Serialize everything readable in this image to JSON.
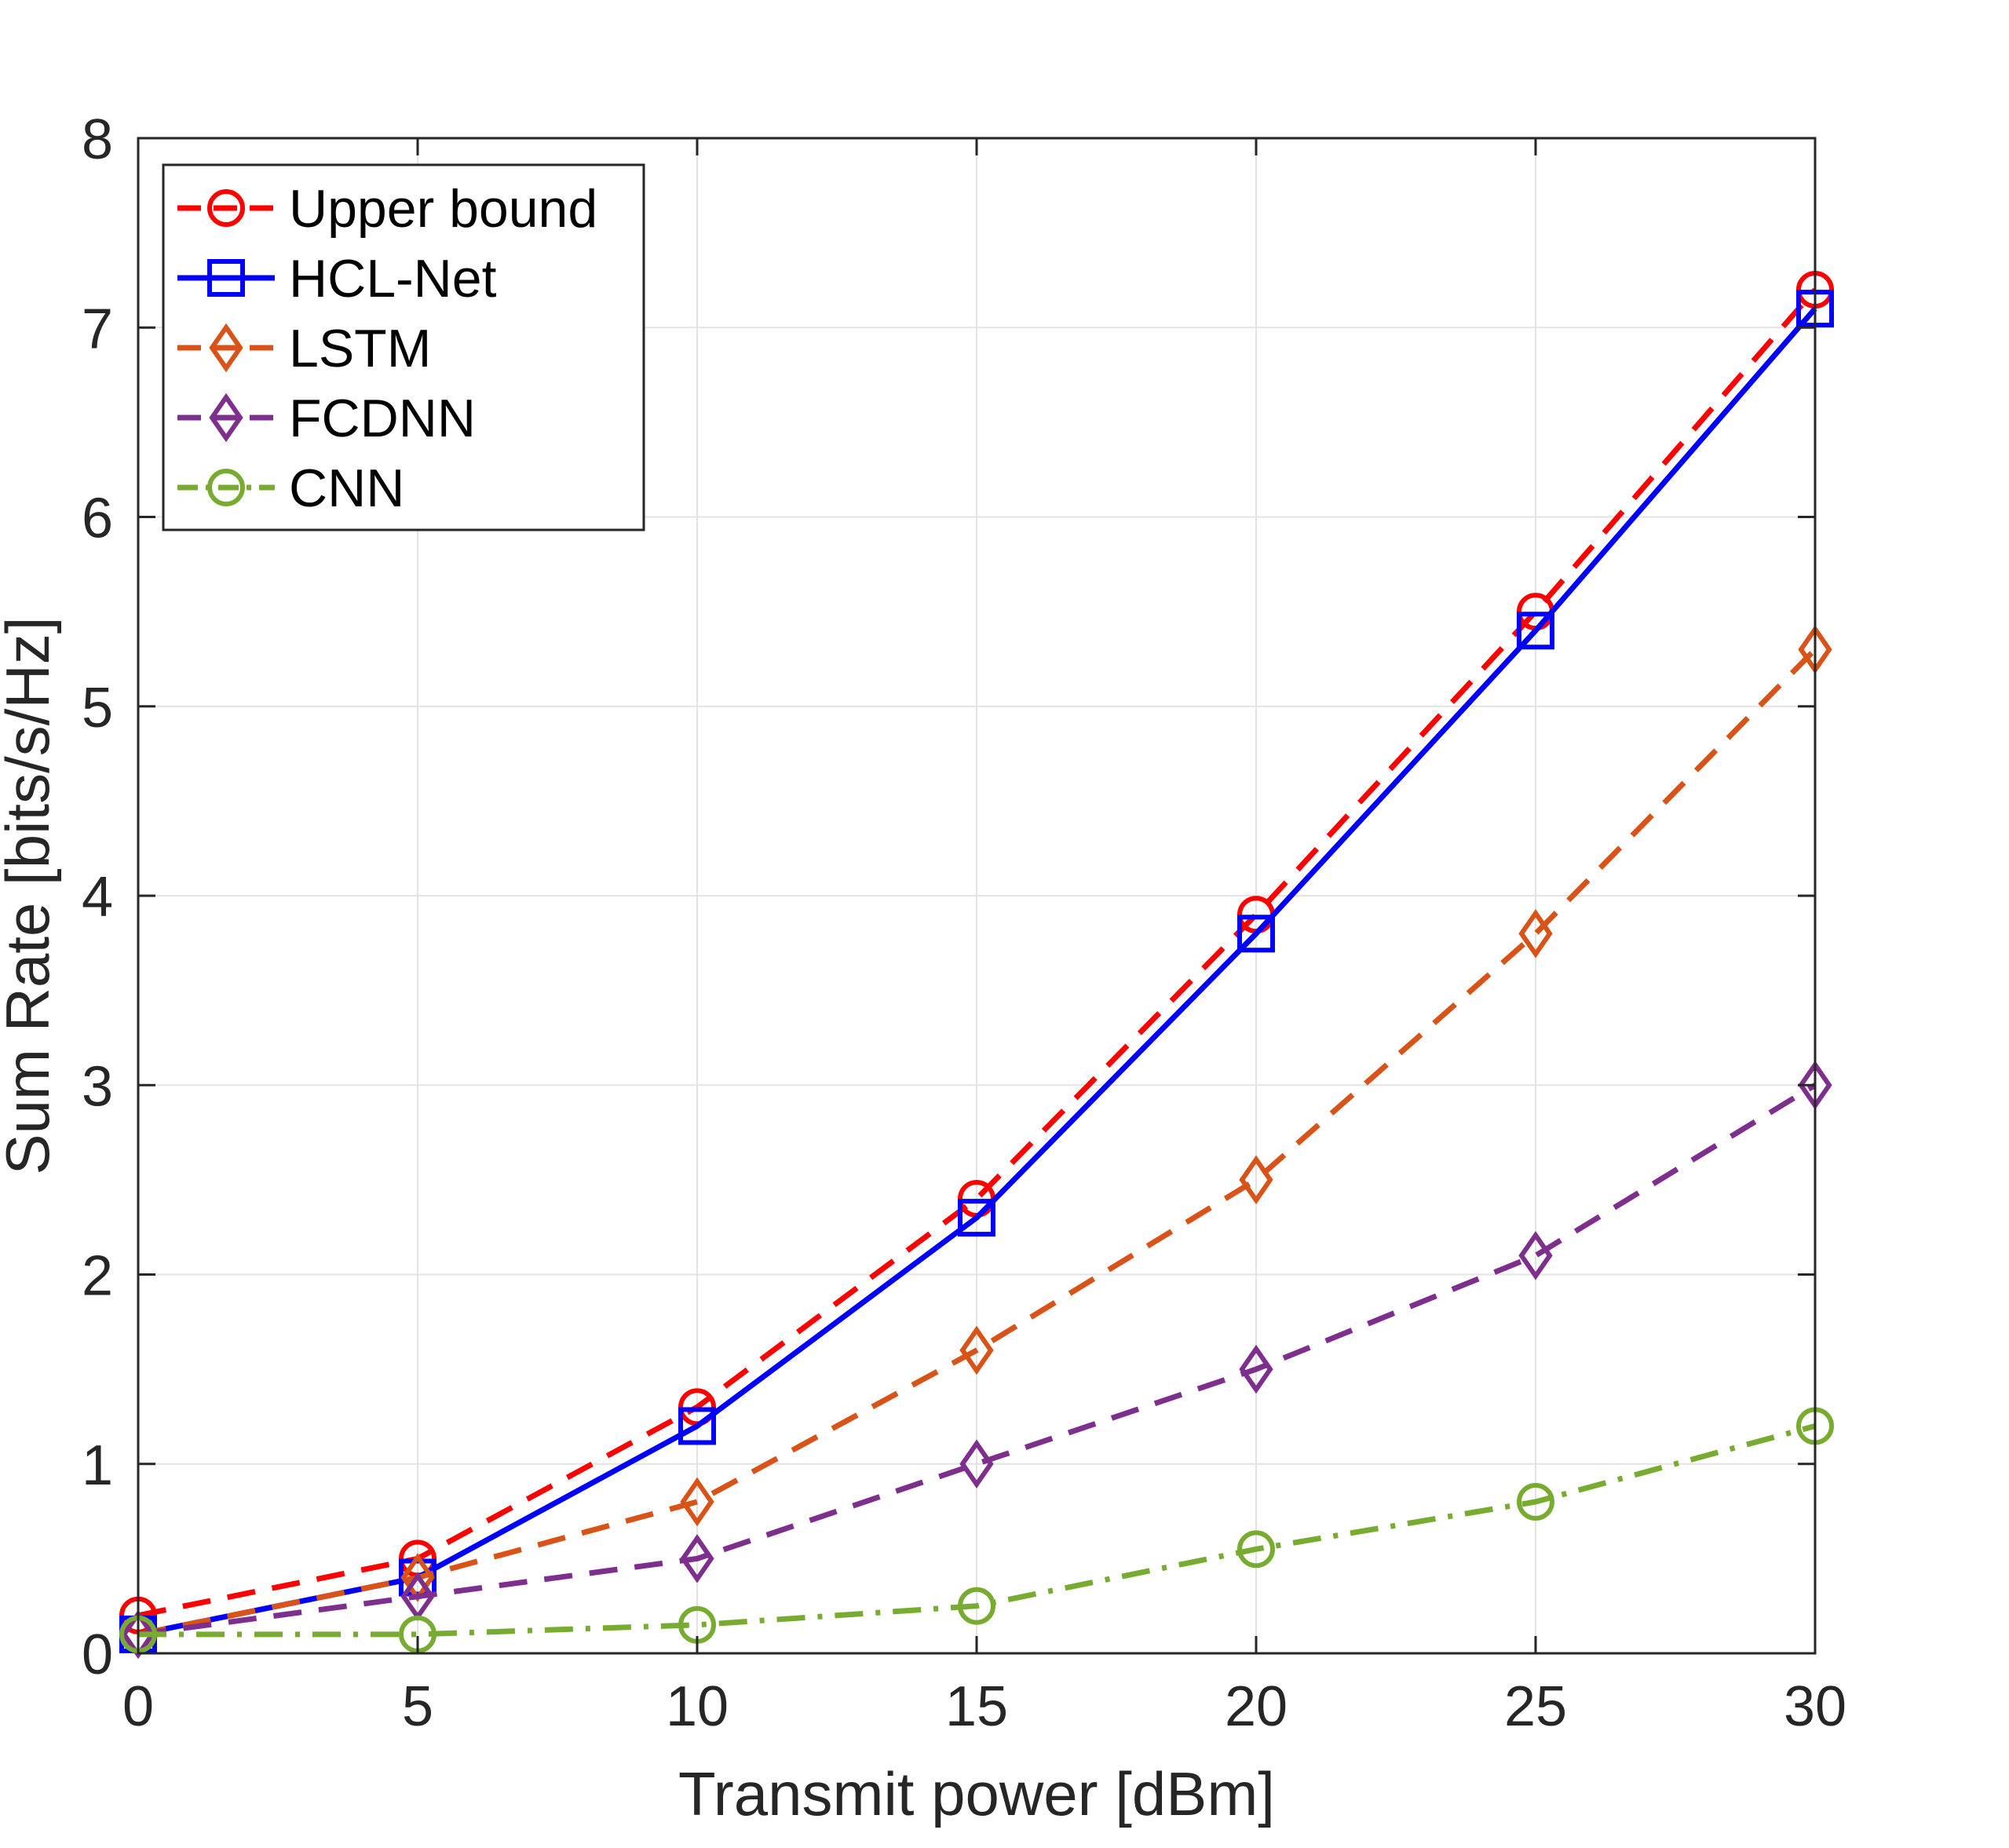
{
  "chart_data": {
    "type": "line",
    "title": "",
    "xlabel": "Transmit power [dBm]",
    "ylabel": "Sum Rate [bits/s/Hz]",
    "xlim": [
      0,
      30
    ],
    "ylim": [
      0,
      8
    ],
    "xticks": [
      0,
      5,
      10,
      15,
      20,
      25,
      30
    ],
    "yticks": [
      0,
      1,
      2,
      3,
      4,
      5,
      6,
      7,
      8
    ],
    "grid": true,
    "legend_position": "top-left",
    "x": [
      0,
      5,
      10,
      15,
      20,
      25,
      30
    ],
    "series": [
      {
        "name": "Upper bound",
        "values": [
          0.2,
          0.5,
          1.3,
          2.4,
          3.9,
          5.5,
          7.2
        ],
        "color": "#ff0000",
        "dash": "dashed",
        "marker": "circle"
      },
      {
        "name": "HCL-Net",
        "values": [
          0.1,
          0.4,
          1.2,
          2.3,
          3.8,
          5.4,
          7.1
        ],
        "color": "#0000ff",
        "dash": "solid",
        "marker": "square"
      },
      {
        "name": "LSTM",
        "values": [
          0.1,
          0.4,
          0.8,
          1.6,
          2.5,
          3.8,
          5.3
        ],
        "color": "#d95319",
        "dash": "dashed",
        "marker": "diamond"
      },
      {
        "name": "FCDNN",
        "values": [
          0.1,
          0.3,
          0.5,
          1.0,
          1.5,
          2.1,
          3.0
        ],
        "color": "#7e2f8e",
        "dash": "dashed",
        "marker": "diamond"
      },
      {
        "name": "CNN",
        "values": [
          0.1,
          0.1,
          0.15,
          0.25,
          0.55,
          0.8,
          1.2
        ],
        "color": "#77ac30",
        "dash": "dashdot",
        "marker": "circle"
      }
    ]
  }
}
